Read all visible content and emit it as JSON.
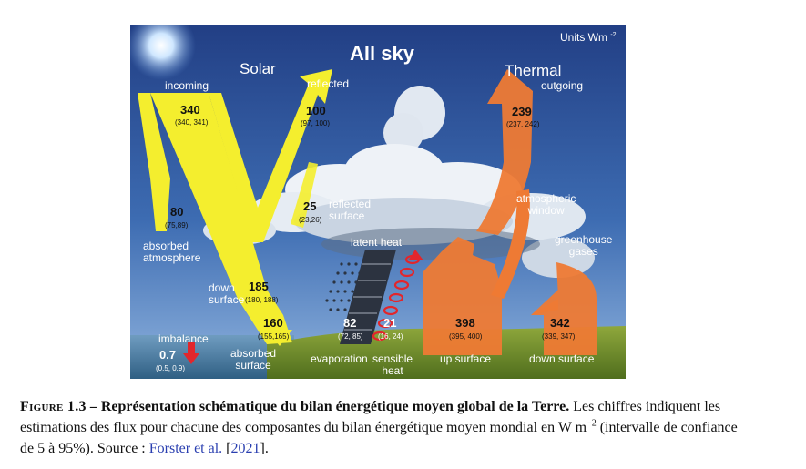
{
  "figure": {
    "title": "All sky",
    "units": "Units Wm ",
    "units_sup": "-2",
    "solar_header": "Solar",
    "thermal_header": "Thermal",
    "solar": {
      "incoming": {
        "label": "incoming",
        "value": "340",
        "range": "(340, 341)"
      },
      "reflected": {
        "label": "reflected",
        "value": "100",
        "range": "(97, 100)"
      },
      "reflected_surface": {
        "label_1": "reflected",
        "label_2": "surface",
        "value": "25",
        "range": "(23,26)"
      },
      "absorbed_atmosphere": {
        "label_1": "absorbed",
        "label_2": "atmosphere",
        "value": "80",
        "range": "(75,89)"
      },
      "down_surface": {
        "label_1": "down",
        "label_2": "surface",
        "value": "185",
        "range": "(180, 188)"
      },
      "absorbed_surface": {
        "label_1": "absorbed",
        "label_2": "surface",
        "value": "160",
        "range": "(155,165)"
      },
      "imbalance": {
        "label": "imbalance",
        "value": "0.7",
        "range": "(0.5, 0.9)"
      }
    },
    "non_radiative": {
      "latent_heat_label": "latent heat",
      "evaporation": {
        "label": "evaporation",
        "value": "82",
        "range": "(72, 85)"
      },
      "sensible_heat": {
        "label_1": "sensible",
        "label_2": "heat",
        "value": "21",
        "range": "(16, 24)"
      }
    },
    "thermal": {
      "outgoing": {
        "label": "outgoing",
        "value": "239",
        "range": "(237, 242)"
      },
      "atmospheric_window": {
        "label_1": "atmospheric",
        "label_2": "window"
      },
      "greenhouse_gases": {
        "label_1": "greenhouse",
        "label_2": "gases"
      },
      "up_surface": {
        "label": "up surface",
        "value": "398",
        "range": "(395, 400)"
      },
      "down_surface": {
        "label": "down surface",
        "value": "342",
        "range": "(339, 347)"
      }
    },
    "colors": {
      "solar_arrow": "#f4ee2e",
      "thermal_arrow": "#ee7a34",
      "sky_top": "#2a4f97",
      "sky_bottom": "#7fa6d6",
      "ground": "#6d8c2a",
      "sea": "#3a6e8f",
      "sensible_heat_coil": "#e2262b",
      "imbalance_arrow": "#e2262b"
    }
  },
  "caption": {
    "figure_label": "Figure 1.3",
    "dash": " – ",
    "bold_text": "Représentation schématique du bilan énergétique moyen global de la Terre.",
    "text_1": " Les chiffres indiquent les estimations des flux pour chacune des composantes du bilan énergétique moyen mondial en W m",
    "unit_exponent": "−2",
    "text_2": " (intervalle de confiance de 5 à 95%). Source : ",
    "source_link": "Forster et al.",
    "text_3": " [",
    "year_link": "2021",
    "text_4": "]."
  }
}
